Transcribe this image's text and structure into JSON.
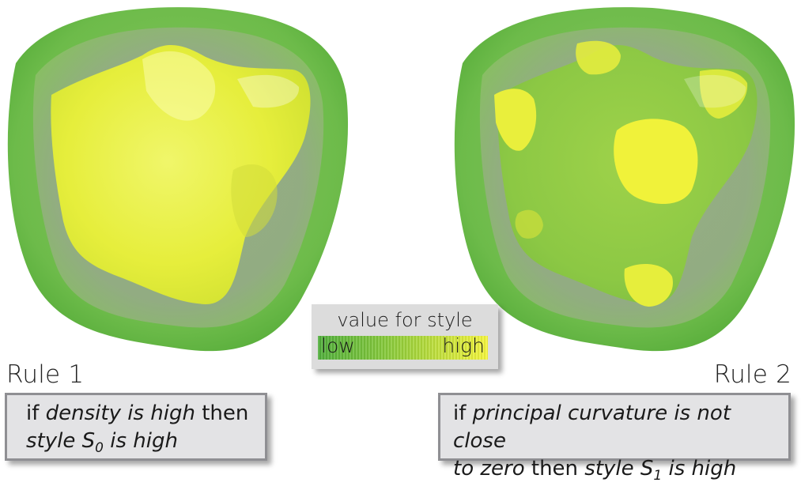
{
  "colors": {
    "low": "#4fae3a",
    "high": "#f4f53a",
    "legend_bg": "#dcdcdc",
    "rule_box_bg": "#e3e3e5",
    "rule_box_border": "#8f8f93"
  },
  "legend": {
    "title": "value for style",
    "low_label": "low",
    "high_label": "high"
  },
  "rule1": {
    "title": "Rule 1",
    "line1_prefix": "if ",
    "line1_italic": "density is high",
    "line1_suffix": " then",
    "line2_italic": "style S",
    "line2_sub": "0",
    "line2_italic_end": " is high"
  },
  "rule2": {
    "title": "Rule 2",
    "line1_prefix": "if ",
    "line1_italic": "principal curvature is not close",
    "line2_italic": "to zero",
    "line2_mid": " then ",
    "line2_italic2": "style S",
    "line2_sub": "1",
    "line2_italic_end": "  is high"
  }
}
